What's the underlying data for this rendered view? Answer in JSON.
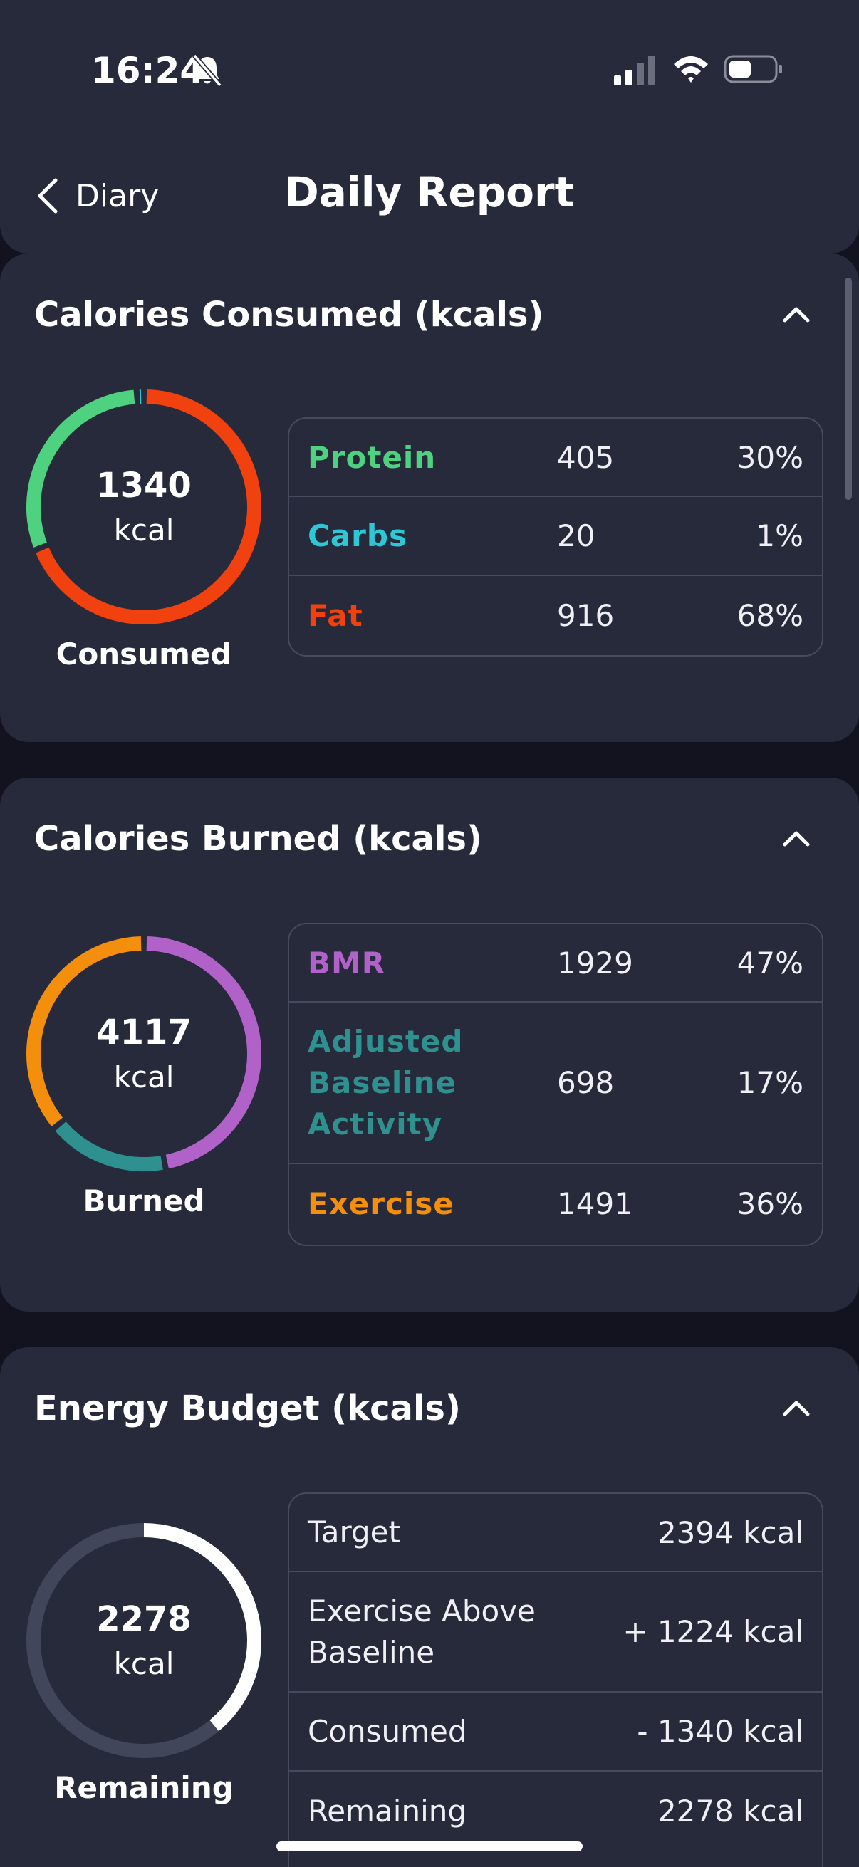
{
  "status_bar": {
    "time": "16:24",
    "icons": [
      "bell-slash-icon",
      "signal-icon",
      "wifi-icon",
      "battery-icon"
    ]
  },
  "header": {
    "back_label": "Diary",
    "title": "Daily Report"
  },
  "colors": {
    "protein": "#4fd27f",
    "carbs": "#2ec7d6",
    "fat": "#f0410f",
    "bmr": "#b062c9",
    "adjusted": "#2f9090",
    "exercise": "#f48e0d",
    "remaining": "#ffffff",
    "track": "#42465a"
  },
  "consumed_card": {
    "title": "Calories Consumed (kcals)",
    "donut_value": "1340",
    "donut_unit": "kcal",
    "donut_caption": "Consumed",
    "rows": [
      {
        "name": "Protein",
        "amount": "405",
        "pct": "30%"
      },
      {
        "name": "Carbs",
        "amount": "20",
        "pct": "1%"
      },
      {
        "name": "Fat",
        "amount": "916",
        "pct": "68%"
      }
    ]
  },
  "burned_card": {
    "title": "Calories Burned (kcals)",
    "donut_value": "4117",
    "donut_unit": "kcal",
    "donut_caption": "Burned",
    "rows": [
      {
        "name": "BMR",
        "amount": "1929",
        "pct": "47%"
      },
      {
        "name": "Adjusted Baseline Activity",
        "amount": "698",
        "pct": "17%"
      },
      {
        "name": "Exercise",
        "amount": "1491",
        "pct": "36%"
      }
    ]
  },
  "budget_card": {
    "title": "Energy Budget (kcals)",
    "donut_value": "2278",
    "donut_unit": "kcal",
    "donut_caption": "Remaining",
    "remaining_fraction": 0.39,
    "rows": [
      {
        "label": "Target",
        "value": "2394 kcal"
      },
      {
        "label": "Exercise Above Baseline",
        "value": "+ 1224 kcal"
      },
      {
        "label": "Consumed",
        "value": "- 1340 kcal"
      },
      {
        "label": "Remaining",
        "value": "2278 kcal"
      }
    ]
  }
}
